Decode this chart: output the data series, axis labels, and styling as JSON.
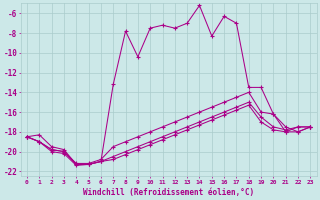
{
  "background_color": "#cce8e8",
  "grid_color": "#aacccc",
  "line_color": "#aa0088",
  "xlim": [
    -0.5,
    23.5
  ],
  "ylim": [
    -22.5,
    -5.0
  ],
  "yticks": [
    -6,
    -8,
    -10,
    -12,
    -14,
    -16,
    -18,
    -20,
    -22
  ],
  "xticks": [
    0,
    1,
    2,
    3,
    4,
    5,
    6,
    7,
    8,
    9,
    10,
    11,
    12,
    13,
    14,
    15,
    16,
    17,
    18,
    19,
    20,
    21,
    22,
    23
  ],
  "xlabel": "Windchill (Refroidissement éolien,°C)",
  "series": {
    "line1": [
      -18.5,
      -18.3,
      -19.5,
      -19.8,
      -21.3,
      -21.3,
      -21.0,
      -13.2,
      -7.8,
      -10.4,
      -7.5,
      -7.2,
      -7.5,
      -7.0,
      -5.2,
      -8.3,
      -6.3,
      -7.0,
      -13.5,
      -13.5,
      -16.2,
      -18.0,
      -18.0,
      -17.5
    ],
    "line2": [
      -18.5,
      -19.0,
      -19.8,
      -20.0,
      -21.2,
      -21.2,
      -20.8,
      -19.5,
      -19.0,
      -18.5,
      -18.0,
      -17.5,
      -17.0,
      -16.5,
      -16.0,
      -15.5,
      -15.0,
      -14.5,
      -14.0,
      -16.0,
      -16.2,
      -17.5,
      -18.0,
      -17.5
    ],
    "line3": [
      -18.5,
      -19.0,
      -19.8,
      -20.0,
      -21.3,
      -21.3,
      -21.0,
      -20.5,
      -20.0,
      -19.5,
      -19.0,
      -18.5,
      -18.0,
      -17.5,
      -17.0,
      -16.5,
      -16.0,
      -15.5,
      -15.0,
      -16.5,
      -17.5,
      -17.8,
      -17.5,
      -17.5
    ],
    "line4": [
      -18.5,
      -19.0,
      -20.0,
      -20.2,
      -21.4,
      -21.3,
      -21.0,
      -20.8,
      -20.3,
      -19.8,
      -19.3,
      -18.8,
      -18.3,
      -17.8,
      -17.3,
      -16.8,
      -16.3,
      -15.8,
      -15.3,
      -17.0,
      -17.8,
      -18.0,
      -17.5,
      -17.5
    ]
  }
}
